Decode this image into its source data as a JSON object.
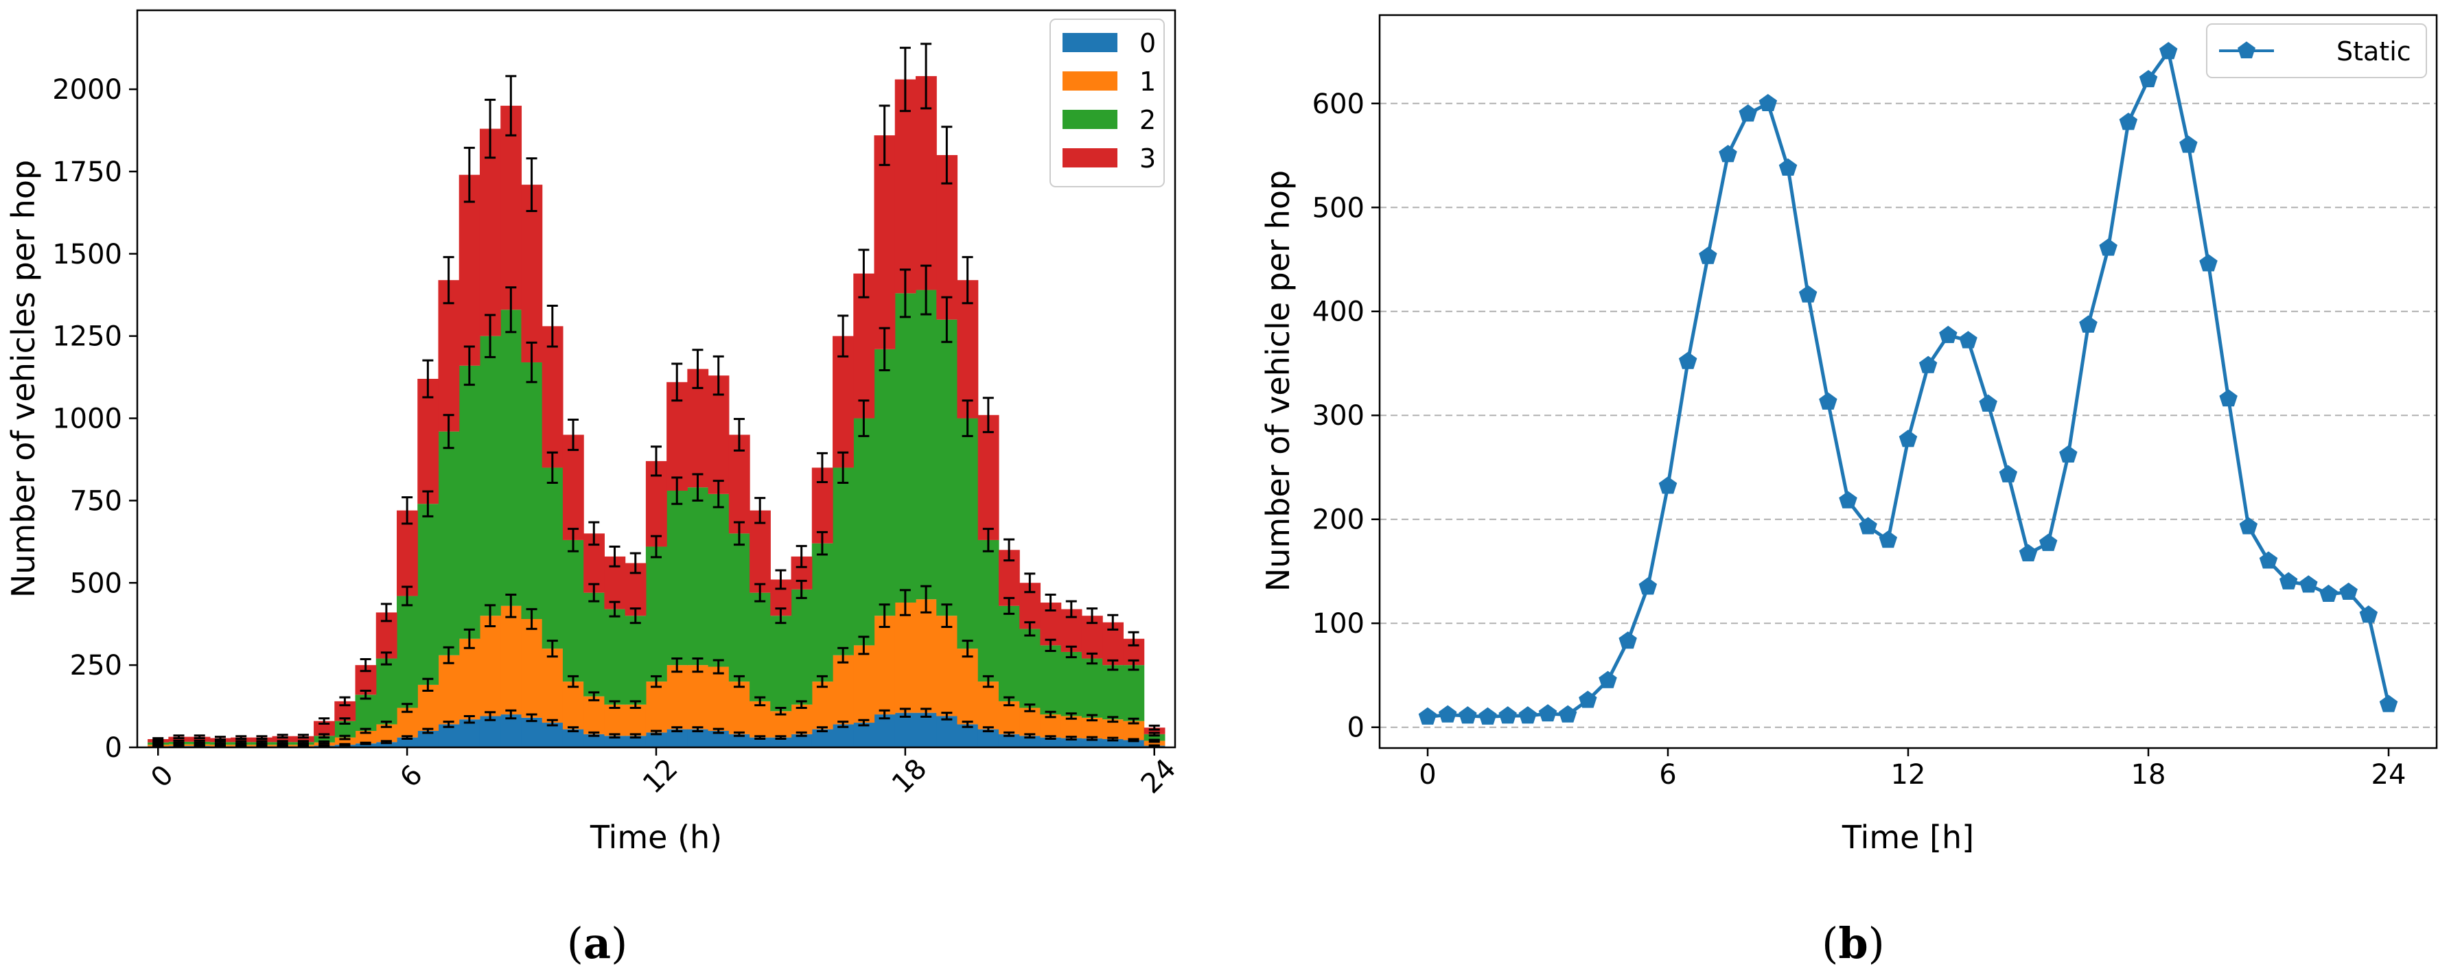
{
  "colors": {
    "series0": "#1f77b4",
    "series1": "#ff7f0e",
    "series2": "#2ca02c",
    "series3": "#d62728",
    "static_line": "#1f77b4",
    "grid": "#b0b0b0",
    "errorbar": "#000000"
  },
  "panel_labels": {
    "a": "(a)",
    "b": "(b)"
  },
  "chart_data": [
    {
      "type": "bar",
      "stacked": true,
      "title": "",
      "xlabel": "Time (h)",
      "ylabel": "Number of vehicles per hop",
      "xlim": [
        -0.5,
        24.5
      ],
      "ylim": [
        0,
        2240
      ],
      "xticks": [
        0,
        6,
        12,
        18,
        24
      ],
      "xtick_labels": [
        "0",
        "6",
        "12",
        "18",
        "24"
      ],
      "yticks": [
        0,
        250,
        500,
        750,
        1000,
        1250,
        1500,
        1750,
        2000
      ],
      "ytick_labels": [
        "0",
        "250",
        "500",
        "750",
        "1000",
        "1250",
        "1500",
        "1750",
        "2000"
      ],
      "bin_width": 0.5,
      "x": [
        0,
        0.5,
        1,
        1.5,
        2,
        2.5,
        3,
        3.5,
        4,
        4.5,
        5,
        5.5,
        6,
        6.5,
        7,
        7.5,
        8,
        8.5,
        9,
        9.5,
        10,
        10.5,
        11,
        11.5,
        12,
        12.5,
        13,
        13.5,
        14,
        14.5,
        15,
        15.5,
        16,
        16.5,
        17,
        17.5,
        18,
        18.5,
        19,
        19.5,
        20,
        20.5,
        21,
        21.5,
        22,
        22.5,
        23,
        23.5,
        24
      ],
      "legend": {
        "entries": [
          "0",
          "1",
          "2",
          "3"
        ],
        "location": "top-right"
      },
      "series": [
        {
          "name": "0",
          "cumulative_values": [
            3,
            4,
            4,
            3,
            3,
            3,
            3,
            3,
            5,
            8,
            12,
            16,
            30,
            50,
            70,
            85,
            95,
            100,
            90,
            75,
            55,
            40,
            35,
            35,
            45,
            55,
            55,
            50,
            40,
            30,
            30,
            40,
            55,
            70,
            75,
            100,
            105,
            105,
            95,
            70,
            55,
            40,
            35,
            30,
            28,
            27,
            25,
            22,
            5
          ],
          "errors": [
            1,
            1,
            1,
            1,
            1,
            1,
            1,
            1,
            1,
            2,
            2,
            3,
            4,
            6,
            8,
            10,
            12,
            12,
            10,
            8,
            6,
            5,
            5,
            5,
            5,
            6,
            6,
            6,
            5,
            4,
            4,
            5,
            6,
            8,
            8,
            12,
            12,
            12,
            10,
            8,
            6,
            5,
            5,
            4,
            4,
            4,
            4,
            3,
            1
          ]
        },
        {
          "name": "1",
          "cumulative_values": [
            8,
            9,
            9,
            8,
            8,
            8,
            8,
            8,
            15,
            30,
            50,
            70,
            120,
            190,
            280,
            330,
            400,
            430,
            390,
            300,
            200,
            155,
            130,
            130,
            200,
            250,
            250,
            245,
            200,
            140,
            110,
            130,
            200,
            280,
            310,
            400,
            440,
            450,
            400,
            300,
            200,
            140,
            120,
            100,
            95,
            90,
            85,
            80,
            20
          ],
          "errors": [
            2,
            2,
            2,
            2,
            2,
            2,
            2,
            2,
            3,
            5,
            6,
            8,
            12,
            18,
            24,
            28,
            32,
            34,
            30,
            24,
            16,
            12,
            10,
            10,
            16,
            20,
            20,
            20,
            16,
            12,
            10,
            10,
            16,
            22,
            26,
            34,
            38,
            40,
            34,
            24,
            16,
            12,
            10,
            8,
            8,
            8,
            7,
            7,
            3
          ]
        },
        {
          "name": "2",
          "cumulative_values": [
            15,
            17,
            17,
            16,
            16,
            16,
            16,
            16,
            35,
            80,
            160,
            270,
            460,
            740,
            960,
            1160,
            1250,
            1330,
            1170,
            850,
            630,
            470,
            420,
            400,
            610,
            780,
            790,
            770,
            650,
            470,
            400,
            480,
            620,
            850,
            1000,
            1210,
            1380,
            1390,
            1300,
            1000,
            630,
            430,
            360,
            310,
            290,
            270,
            250,
            250,
            40
          ],
          "errors": [
            2,
            3,
            3,
            3,
            3,
            3,
            3,
            3,
            5,
            8,
            12,
            18,
            28,
            38,
            50,
            58,
            64,
            68,
            60,
            46,
            34,
            26,
            22,
            22,
            32,
            40,
            40,
            40,
            34,
            26,
            22,
            26,
            34,
            46,
            54,
            64,
            72,
            74,
            68,
            54,
            34,
            24,
            20,
            17,
            16,
            15,
            14,
            14,
            4
          ]
        },
        {
          "name": "3",
          "cumulative_values": [
            25,
            32,
            32,
            28,
            30,
            30,
            34,
            34,
            80,
            140,
            250,
            410,
            720,
            1120,
            1420,
            1740,
            1880,
            1950,
            1710,
            1280,
            950,
            650,
            580,
            560,
            870,
            1110,
            1150,
            1130,
            950,
            720,
            510,
            580,
            850,
            1250,
            1440,
            1860,
            2030,
            2040,
            1800,
            1420,
            1010,
            600,
            500,
            440,
            420,
            400,
            380,
            330,
            60
          ],
          "errors": [
            3,
            4,
            4,
            4,
            4,
            4,
            4,
            4,
            8,
            12,
            18,
            26,
            40,
            56,
            70,
            82,
            88,
            90,
            80,
            62,
            46,
            34,
            30,
            30,
            44,
            56,
            58,
            58,
            48,
            38,
            28,
            32,
            44,
            62,
            72,
            90,
            96,
            98,
            86,
            70,
            52,
            32,
            28,
            24,
            24,
            22,
            22,
            20,
            6
          ]
        }
      ]
    },
    {
      "type": "line",
      "title": "",
      "xlabel": "Time [h]",
      "ylabel": "Number of vehicle per hop",
      "xlim": [
        -1.2,
        25.2
      ],
      "ylim": [
        -20,
        685
      ],
      "xticks": [
        0,
        6,
        12,
        18,
        24
      ],
      "xtick_labels": [
        "0",
        "6",
        "12",
        "18",
        "24"
      ],
      "yticks": [
        0,
        100,
        200,
        300,
        400,
        500,
        600
      ],
      "ytick_labels": [
        "0",
        "100",
        "200",
        "300",
        "400",
        "500",
        "600"
      ],
      "grid": "y-dashed",
      "marker": "pentagon",
      "legend": {
        "entries": [
          "Static"
        ],
        "location": "top-right"
      },
      "series": [
        {
          "name": "Static",
          "x": [
            0,
            0.5,
            1,
            1.5,
            2,
            2.5,
            3,
            3.5,
            4,
            4.5,
            5,
            5.5,
            6,
            6.5,
            7,
            7.5,
            8,
            8.5,
            9,
            9.5,
            10,
            10.5,
            11,
            11.5,
            12,
            12.5,
            13,
            13.5,
            14,
            14.5,
            15,
            15.5,
            16,
            16.5,
            17,
            17.5,
            18,
            18.5,
            19,
            19.5,
            20,
            20.5,
            21,
            21.5,
            22,
            22.5,
            23,
            23.5,
            24
          ],
          "y": [
            10,
            12,
            11,
            10,
            11,
            11,
            13,
            12,
            26,
            45,
            83,
            135,
            232,
            352,
            453,
            551,
            590,
            600,
            538,
            416,
            313,
            218,
            193,
            180,
            277,
            348,
            377,
            372,
            311,
            243,
            167,
            177,
            262,
            387,
            461,
            582,
            623,
            650,
            560,
            446,
            316,
            193,
            160,
            140,
            137,
            128,
            130,
            108,
            22
          ]
        }
      ]
    }
  ]
}
